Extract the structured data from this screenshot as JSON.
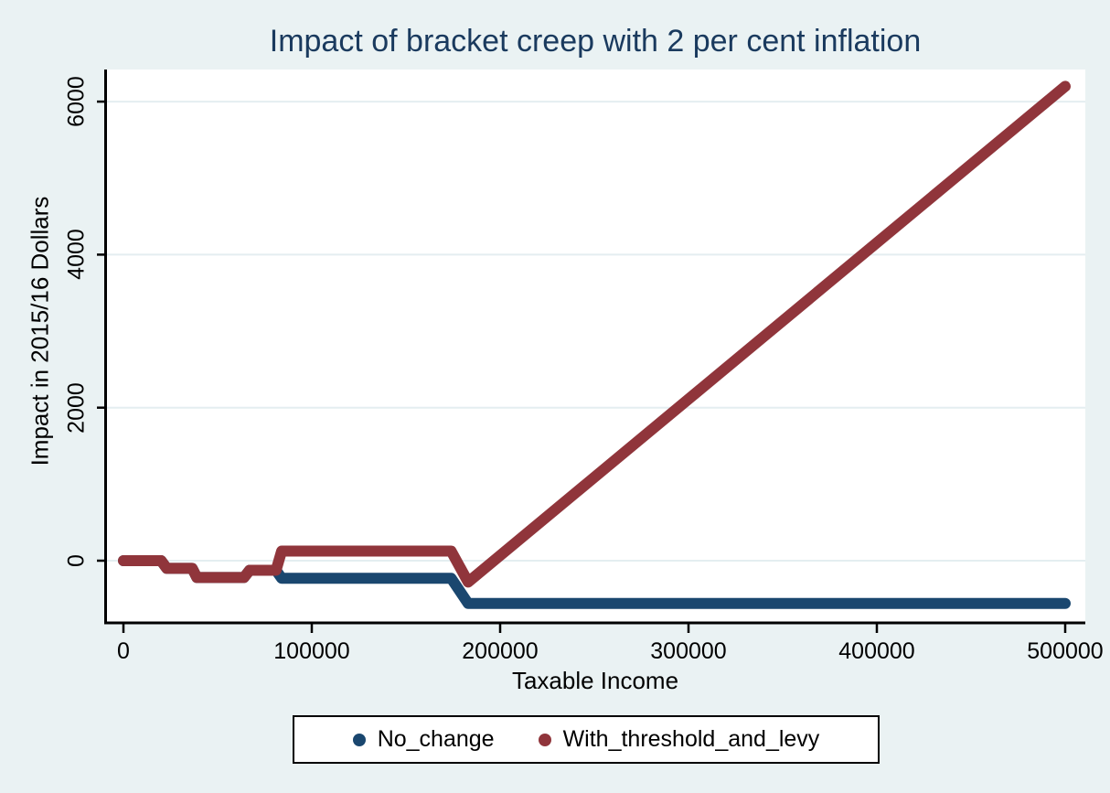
{
  "colors": {
    "background": "#eaf2f3",
    "plot_background": "#ffffff",
    "gridline": "#e4eef1",
    "axis_line": "#000000",
    "title_text": "#1a3a5e",
    "tick_text": "#000000",
    "series_navy": "#1a476f",
    "series_maroon": "#90353b"
  },
  "chart_data": {
    "type": "line",
    "title": "Impact of bracket creep with 2 per cent inflation",
    "xlabel": "Taxable Income",
    "ylabel": "Impact in 2015/16 Dollars",
    "xlim": [
      0,
      500000
    ],
    "ylim": [
      -800,
      6420
    ],
    "grid": "horizontal",
    "legend_position": "bottom-center",
    "xticks": [
      0,
      100000,
      200000,
      300000,
      400000,
      500000
    ],
    "xtick_labels": [
      "0",
      "100000",
      "200000",
      "300000",
      "400000",
      "500000"
    ],
    "yticks": [
      0,
      2000,
      4000,
      6000
    ],
    "ytick_labels": [
      "0",
      "2000",
      "4000",
      "6000"
    ],
    "series": [
      {
        "name": "No_change",
        "color": "#1a476f",
        "points": [
          [
            0,
            0
          ],
          [
            20000,
            0
          ],
          [
            23000,
            -100
          ],
          [
            36500,
            -100
          ],
          [
            39000,
            -220
          ],
          [
            64000,
            -220
          ],
          [
            67000,
            -125
          ],
          [
            81000,
            -125
          ],
          [
            84000,
            -230
          ],
          [
            174000,
            -230
          ],
          [
            183000,
            -560
          ],
          [
            500000,
            -560
          ]
        ]
      },
      {
        "name": "With_threshold_and_levy",
        "color": "#90353b",
        "points": [
          [
            0,
            0
          ],
          [
            20000,
            0
          ],
          [
            23000,
            -100
          ],
          [
            36500,
            -100
          ],
          [
            39000,
            -220
          ],
          [
            64000,
            -220
          ],
          [
            67000,
            -125
          ],
          [
            81000,
            -125
          ],
          [
            84000,
            125
          ],
          [
            174000,
            125
          ],
          [
            183000,
            -280
          ],
          [
            500000,
            6200
          ]
        ]
      }
    ]
  }
}
